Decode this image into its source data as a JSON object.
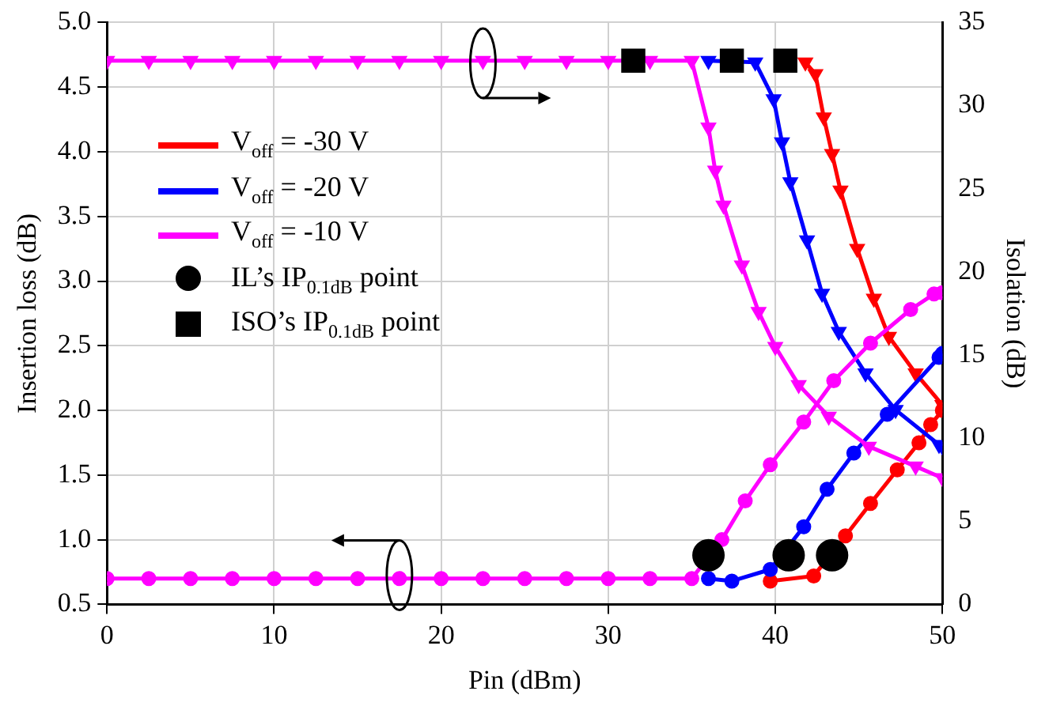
{
  "chart_data": {
    "type": "line",
    "xlabel": "Pin (dBm)",
    "ylabel": "Insertion loss (dB)",
    "y2label": "Isolation (dB)",
    "xlim": [
      0,
      50
    ],
    "xticks": [
      0,
      10,
      20,
      30,
      40,
      50
    ],
    "ylim": [
      0.5,
      5.0
    ],
    "yticks": [
      {
        "value": 0.5,
        "label": "0.5"
      },
      {
        "value": 1,
        "label": "1.0"
      },
      {
        "value": 1.5,
        "label": "1.5"
      },
      {
        "value": 2,
        "label": "2.0"
      },
      {
        "value": 2.5,
        "label": "2.5"
      },
      {
        "value": 3,
        "label": "3.0"
      },
      {
        "value": 3.5,
        "label": "3.5"
      },
      {
        "value": 4,
        "label": "4.0"
      },
      {
        "value": 4.5,
        "label": "4.5"
      },
      {
        "value": 5,
        "label": "5.0"
      }
    ],
    "y2lim": [
      0,
      35
    ],
    "y2ticks": [
      0,
      5,
      10,
      15,
      20,
      25,
      30,
      35
    ],
    "grid": true,
    "legend": "top left",
    "line_style": "solid",
    "series": [
      {
        "name": "V$_{off}$ = -30 V",
        "color": "#ff0000",
        "marker": "circle",
        "x": [
          39.7,
          42.3,
          44.2,
          45.7,
          47.3,
          48.6,
          49.3,
          50
        ],
        "values": [
          0.68,
          0.72,
          1.03,
          1.28,
          1.54,
          1.75,
          1.89,
          2.0
        ]
      },
      {
        "color": "#ff0000",
        "marker": "triangle",
        "axis": "y2",
        "x": [
          41.8,
          42.4,
          42.9,
          43.4,
          43.9,
          44.9,
          45.9,
          46.8,
          48.4,
          50
        ],
        "values": [
          32.6,
          31.9,
          29.3,
          27.1,
          24.9,
          21.4,
          18.4,
          16.1,
          13.9,
          12.0
        ]
      },
      {
        "name": "V$_{off}$ = -20 V",
        "color": "#0000ff",
        "marker": "circle",
        "x": [
          36,
          37.4,
          39.7,
          41.7,
          43.1,
          44.7,
          46.7,
          49.8,
          50
        ],
        "values": [
          0.7,
          0.68,
          0.77,
          1.1,
          1.39,
          1.67,
          1.97,
          2.41,
          2.44
        ]
      },
      {
        "color": "#0000ff",
        "marker": "triangle",
        "axis": "y2",
        "x": [
          36,
          38.8,
          39.9,
          40.4,
          40.9,
          41.9,
          42.8,
          43.8,
          45.4,
          47.2,
          49.8,
          50
        ],
        "values": [
          32.7,
          32.6,
          30.4,
          27.8,
          25.4,
          21.9,
          18.7,
          16.4,
          13.9,
          11.7,
          9.6,
          9.5
        ]
      },
      {
        "name": "V$_{off}$ = -10 V",
        "color": "#ff00ff",
        "marker": "circle",
        "x": [
          0,
          2.5,
          5,
          7.5,
          10,
          12.5,
          15,
          17.5,
          20,
          22.5,
          25,
          27.5,
          30,
          32.5,
          35,
          36.8,
          38.2,
          39.7,
          41.7,
          43.5,
          45.7,
          48.1,
          49.5,
          50
        ],
        "values": [
          0.7,
          0.7,
          0.7,
          0.7,
          0.7,
          0.7,
          0.7,
          0.7,
          0.7,
          0.7,
          0.7,
          0.7,
          0.7,
          0.7,
          0.7,
          1.0,
          1.3,
          1.58,
          1.91,
          2.23,
          2.52,
          2.78,
          2.9,
          2.91
        ]
      },
      {
        "color": "#ff00ff",
        "marker": "triangle",
        "axis": "y2",
        "x": [
          0,
          2.5,
          5,
          7.5,
          10,
          12.5,
          15,
          17.5,
          20,
          22.5,
          25,
          27.5,
          30,
          32.5,
          35,
          36,
          36.4,
          36.9,
          38,
          39,
          40,
          41.4,
          43.2,
          45.6,
          48.4,
          50
        ],
        "values": [
          32.7,
          32.7,
          32.7,
          32.7,
          32.7,
          32.7,
          32.7,
          32.7,
          32.7,
          32.7,
          32.7,
          32.7,
          32.7,
          32.7,
          32.7,
          28.7,
          26.1,
          24.0,
          20.4,
          17.6,
          15.5,
          13.2,
          11.3,
          9.5,
          8.3,
          7.6
        ]
      },
      {
        "name": "IL’s IP$_{0.1dB}$ point",
        "type": "scatter",
        "color": "#000000",
        "marker": "circle",
        "x": [
          36.0,
          40.8,
          43.4
        ],
        "values": [
          0.88,
          0.88,
          0.88
        ]
      },
      {
        "name": "ISO’s IP$_{0.1dB}$ point",
        "type": "scatter",
        "color": "#000000",
        "marker": "square",
        "axis": "y2",
        "x": [
          31.5,
          37.4,
          40.6
        ],
        "values": [
          32.7,
          32.7,
          32.7
        ]
      }
    ]
  }
}
